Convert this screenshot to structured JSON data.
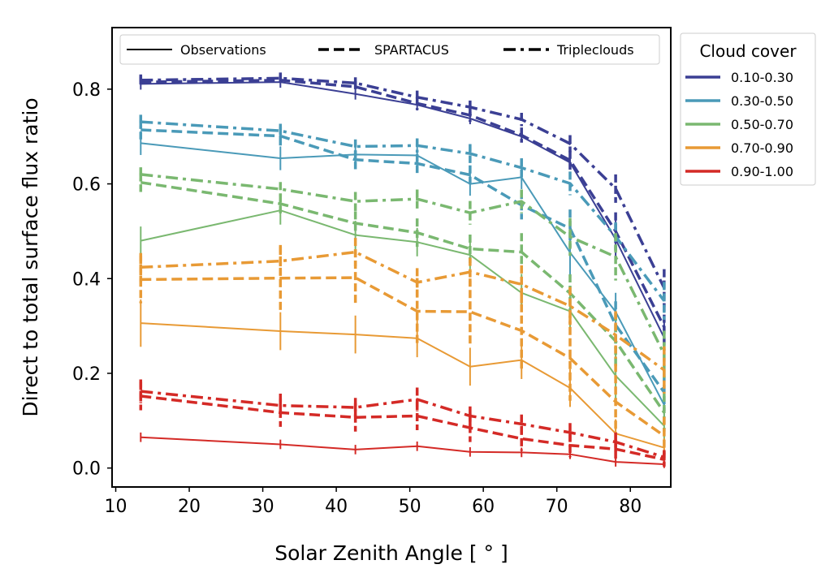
{
  "chart_data": {
    "type": "line",
    "xlabel": "Solar Zenith Angle [ ° ]",
    "ylabel": "Direct to total surface flux ratio",
    "xlim": [
      9.5,
      85.5
    ],
    "ylim": [
      -0.04,
      0.93
    ],
    "x_ticks": [
      10,
      20,
      30,
      40,
      50,
      60,
      70,
      80
    ],
    "y_ticks": [
      0.0,
      0.2,
      0.4,
      0.6,
      0.8
    ],
    "x_tick_labels": [
      "10",
      "20",
      "30",
      "40",
      "50",
      "60",
      "70",
      "80"
    ],
    "y_tick_labels": [
      "0.0",
      "0.2",
      "0.4",
      "0.6",
      "0.8"
    ],
    "grid": false,
    "x": [
      13.4,
      32.4,
      42.6,
      51.0,
      58.2,
      65.2,
      71.8,
      78.0,
      84.6
    ],
    "style_legend": {
      "placement": "top",
      "entries": [
        {
          "label": "Observations",
          "style": "solid"
        },
        {
          "label": "SPARTACUS",
          "style": "dashed"
        },
        {
          "label": "Tripleclouds",
          "style": "dashdot"
        }
      ]
    },
    "color_legend": {
      "placement": "right",
      "title": "Cloud cover",
      "entries": [
        {
          "label": "0.10-0.30",
          "color": "#3b3f94"
        },
        {
          "label": "0.30-0.50",
          "color": "#4a9ab8"
        },
        {
          "label": "0.50-0.70",
          "color": "#7ab870"
        },
        {
          "label": "0.70-0.90",
          "color": "#e89a35"
        },
        {
          "label": "0.90-1.00",
          "color": "#d42a26"
        }
      ]
    },
    "series": [
      {
        "group": "0.10-0.30",
        "model": "Observations",
        "values": [
          0.811,
          0.815,
          0.79,
          0.767,
          0.738,
          0.7,
          0.645,
          0.483,
          0.275
        ],
        "err": [
          0.012,
          0.012,
          0.012,
          0.012,
          0.012,
          0.012,
          0.012,
          0.04,
          0.04
        ]
      },
      {
        "group": "0.10-0.30",
        "model": "SPARTACUS",
        "values": [
          0.815,
          0.819,
          0.805,
          0.77,
          0.745,
          0.703,
          0.65,
          0.5,
          0.298
        ],
        "err": [
          0.012,
          0.012,
          0.012,
          0.014,
          0.014,
          0.016,
          0.02,
          0.04,
          0.05
        ]
      },
      {
        "group": "0.10-0.30",
        "model": "Tripleclouds",
        "values": [
          0.819,
          0.823,
          0.813,
          0.783,
          0.762,
          0.736,
          0.685,
          0.59,
          0.38
        ],
        "err": [
          0.012,
          0.012,
          0.012,
          0.014,
          0.014,
          0.014,
          0.018,
          0.03,
          0.04
        ]
      },
      {
        "group": "0.30-0.50",
        "model": "Observations",
        "values": [
          0.686,
          0.654,
          0.662,
          0.66,
          0.6,
          0.614,
          0.455,
          0.33,
          0.133
        ],
        "err": [
          0.025,
          0.025,
          0.025,
          0.025,
          0.025,
          0.025,
          0.05,
          0.04,
          0.03
        ]
      },
      {
        "group": "0.30-0.50",
        "model": "SPARTACUS",
        "values": [
          0.714,
          0.701,
          0.651,
          0.643,
          0.619,
          0.555,
          0.506,
          0.302,
          0.16
        ],
        "err": [
          0.02,
          0.02,
          0.02,
          0.02,
          0.02,
          0.03,
          0.04,
          0.05,
          0.04
        ]
      },
      {
        "group": "0.30-0.50",
        "model": "Tripleclouds",
        "values": [
          0.731,
          0.712,
          0.679,
          0.681,
          0.664,
          0.634,
          0.601,
          0.489,
          0.353
        ],
        "err": [
          0.015,
          0.015,
          0.015,
          0.015,
          0.02,
          0.02,
          0.025,
          0.03,
          0.04
        ]
      },
      {
        "group": "0.50-0.70",
        "model": "Observations",
        "values": [
          0.48,
          0.544,
          0.492,
          0.477,
          0.45,
          0.37,
          0.331,
          0.195,
          0.089
        ],
        "err": [
          0.03,
          0.03,
          0.03,
          0.03,
          0.03,
          0.04,
          0.04,
          0.05,
          0.03
        ]
      },
      {
        "group": "0.50-0.70",
        "model": "SPARTACUS",
        "values": [
          0.603,
          0.558,
          0.517,
          0.497,
          0.463,
          0.456,
          0.369,
          0.268,
          0.117
        ],
        "err": [
          0.02,
          0.02,
          0.025,
          0.03,
          0.03,
          0.04,
          0.04,
          0.06,
          0.04
        ]
      },
      {
        "group": "0.50-0.70",
        "model": "Tripleclouds",
        "values": [
          0.62,
          0.589,
          0.563,
          0.568,
          0.539,
          0.563,
          0.488,
          0.446,
          0.24
        ],
        "err": [
          0.015,
          0.015,
          0.02,
          0.02,
          0.025,
          0.025,
          0.04,
          0.05,
          0.05
        ]
      },
      {
        "group": "0.70-0.90",
        "model": "Observations",
        "values": [
          0.306,
          0.289,
          0.282,
          0.274,
          0.214,
          0.228,
          0.169,
          0.073,
          0.043
        ],
        "err": [
          0.05,
          0.04,
          0.04,
          0.04,
          0.04,
          0.04,
          0.04,
          0.03,
          0.02
        ]
      },
      {
        "group": "0.70-0.90",
        "model": "SPARTACUS",
        "values": [
          0.398,
          0.401,
          0.402,
          0.331,
          0.33,
          0.29,
          0.232,
          0.14,
          0.068
        ],
        "err": [
          0.05,
          0.07,
          0.06,
          0.07,
          0.07,
          0.08,
          0.09,
          0.08,
          0.04
        ]
      },
      {
        "group": "0.70-0.90",
        "model": "Tripleclouds",
        "values": [
          0.424,
          0.437,
          0.456,
          0.392,
          0.414,
          0.388,
          0.342,
          0.281,
          0.207
        ],
        "err": [
          0.03,
          0.03,
          0.03,
          0.03,
          0.03,
          0.04,
          0.04,
          0.05,
          0.05
        ]
      },
      {
        "group": "0.90-1.00",
        "model": "Observations",
        "values": [
          0.065,
          0.05,
          0.039,
          0.046,
          0.034,
          0.033,
          0.029,
          0.013,
          0.008
        ],
        "err": [
          0.01,
          0.01,
          0.01,
          0.01,
          0.01,
          0.01,
          0.01,
          0.01,
          0.008
        ]
      },
      {
        "group": "0.90-1.00",
        "model": "SPARTACUS",
        "values": [
          0.152,
          0.117,
          0.107,
          0.11,
          0.085,
          0.062,
          0.048,
          0.04,
          0.018
        ],
        "err": [
          0.03,
          0.03,
          0.03,
          0.03,
          0.03,
          0.025,
          0.025,
          0.02,
          0.015
        ]
      },
      {
        "group": "0.90-1.00",
        "model": "Tripleclouds",
        "values": [
          0.162,
          0.132,
          0.128,
          0.145,
          0.11,
          0.093,
          0.075,
          0.055,
          0.023
        ],
        "err": [
          0.025,
          0.025,
          0.02,
          0.025,
          0.02,
          0.02,
          0.02,
          0.02,
          0.015
        ]
      }
    ]
  }
}
